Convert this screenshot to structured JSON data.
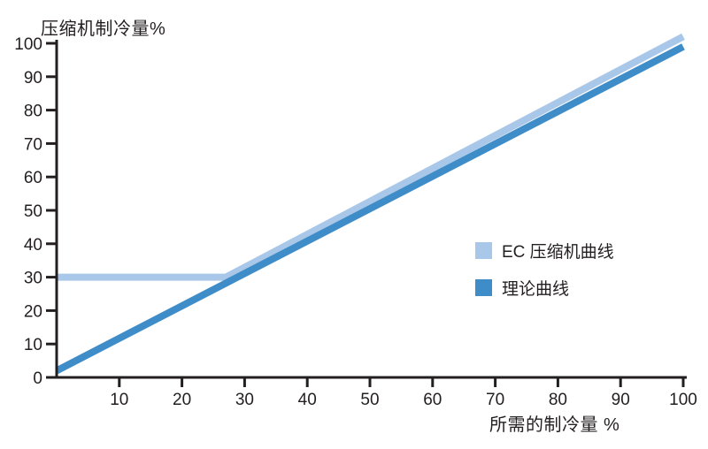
{
  "chart_data": {
    "type": "line",
    "title": "",
    "ylabel": "压缩机制冷量%",
    "xlabel": "所需的制冷量 %",
    "xlim": [
      0,
      100
    ],
    "ylim": [
      0,
      100
    ],
    "x_ticks": [
      10,
      20,
      30,
      40,
      50,
      60,
      70,
      80,
      90,
      100
    ],
    "y_ticks": [
      0,
      10,
      20,
      30,
      40,
      50,
      60,
      70,
      80,
      90,
      100
    ],
    "grid": false,
    "axis_color": "#231f20",
    "background_color": "#ffffff",
    "legend_position": "middle-right",
    "series": [
      {
        "name": "EC 压缩机曲线",
        "color": "#a9c7e8",
        "points": [
          [
            0,
            30
          ],
          [
            27,
            30
          ],
          [
            100,
            102
          ]
        ]
      },
      {
        "name": "理论曲线",
        "color": "#3e8cc8",
        "points": [
          [
            0,
            2
          ],
          [
            100,
            99
          ]
        ]
      }
    ]
  }
}
